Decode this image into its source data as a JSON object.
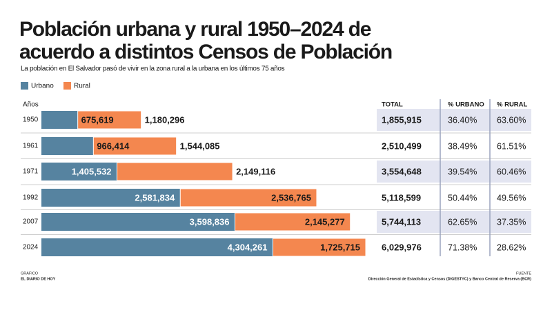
{
  "chart_data": {
    "type": "bar",
    "title": "Población urbana y rural 1950–2024 de",
    "title_line2": "acuerdo a distintos Censos de Población",
    "subtitle": "La población en El Salvador pasó de vivir en la zona rural a la urbana en los últimos 75 años",
    "ylabel": "Años",
    "categories": [
      "1950",
      "1961",
      "1971",
      "1992",
      "2007",
      "2024"
    ],
    "series": [
      {
        "name": "Urbano",
        "color": "#5683a0",
        "values": [
          675619,
          966414,
          1405532,
          2581834,
          3598836,
          4304261
        ],
        "value_labels": [
          "675,619",
          "966,414",
          "1,405,532",
          "2,581,834",
          "3,598,836",
          "4,304,261"
        ]
      },
      {
        "name": "Rural",
        "color": "#f4874f",
        "values": [
          1180296,
          1544085,
          2149116,
          2536765,
          2145277,
          1725715
        ],
        "value_labels": [
          "1,180,296",
          "1,544,085",
          "2,149,116",
          "2,536,765",
          "2,145,277",
          "1,725,715"
        ]
      }
    ]
  },
  "table": {
    "columns": [
      "TOTAL",
      "% URBANO",
      "% RURAL"
    ],
    "rows": [
      [
        "1,855,915",
        "36.40%",
        "63.60%"
      ],
      [
        "2,510,499",
        "38.49%",
        "61.51%"
      ],
      [
        "3,554,648",
        "39.54%",
        "60.46%"
      ],
      [
        "5,118,599",
        "50.44%",
        "49.56%"
      ],
      [
        "5,744,113",
        "62.65%",
        "37.35%"
      ],
      [
        "6,029,976",
        "71.38%",
        "28.62%"
      ]
    ]
  },
  "footer": {
    "credit_label": "GRÁFICO",
    "credit": "EL DIARIO DE HOY",
    "source_label": "FUENTE",
    "source": "Dirección General de Estadística y Censos (DIGESTYC) y Banco Central de Reserva (BCR)"
  }
}
